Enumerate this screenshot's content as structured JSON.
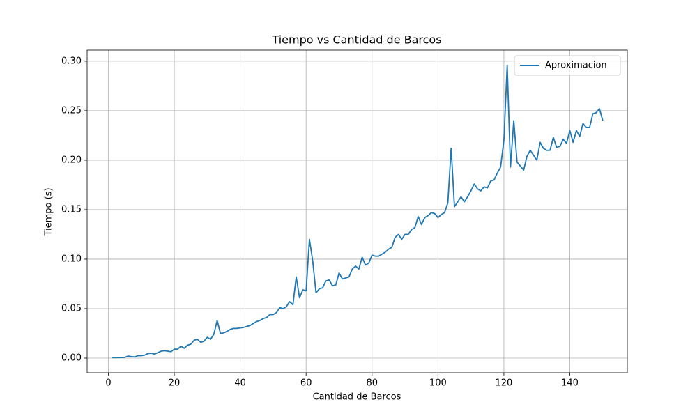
{
  "chart_data": {
    "type": "line",
    "title": "Tiempo vs Cantidad de Barcos",
    "xlabel": "Cantidad de Barcos",
    "ylabel": "Tiempo (s)",
    "x": [
      1,
      2,
      3,
      4,
      5,
      6,
      7,
      8,
      9,
      10,
      11,
      12,
      13,
      14,
      15,
      16,
      17,
      18,
      19,
      20,
      21,
      22,
      23,
      24,
      25,
      26,
      27,
      28,
      29,
      30,
      31,
      32,
      33,
      34,
      35,
      36,
      37,
      38,
      39,
      40,
      41,
      42,
      43,
      44,
      45,
      46,
      47,
      48,
      49,
      50,
      51,
      52,
      53,
      54,
      55,
      56,
      57,
      58,
      59,
      60,
      61,
      62,
      63,
      64,
      65,
      66,
      67,
      68,
      69,
      70,
      71,
      72,
      73,
      74,
      75,
      76,
      77,
      78,
      79,
      80,
      81,
      82,
      83,
      84,
      85,
      86,
      87,
      88,
      89,
      90,
      91,
      92,
      93,
      94,
      95,
      96,
      97,
      98,
      99,
      100,
      101,
      102,
      103,
      104,
      105,
      106,
      107,
      108,
      109,
      110,
      111,
      112,
      113,
      114,
      115,
      116,
      117,
      118,
      119,
      120,
      121,
      122,
      123,
      124,
      125,
      126,
      127,
      128,
      129,
      130,
      131,
      132,
      133,
      134,
      135,
      136,
      137,
      138,
      139,
      140,
      141,
      142,
      143,
      144,
      145,
      146,
      147,
      148,
      149,
      150
    ],
    "series": [
      {
        "name": "Aproximacion",
        "color": "#1f77b4",
        "values": [
          0.0005,
          0.0005,
          0.0005,
          0.0006,
          0.0008,
          0.002,
          0.0015,
          0.0012,
          0.0025,
          0.0025,
          0.003,
          0.0045,
          0.005,
          0.004,
          0.0055,
          0.007,
          0.0075,
          0.007,
          0.0065,
          0.009,
          0.009,
          0.012,
          0.01,
          0.013,
          0.014,
          0.018,
          0.019,
          0.016,
          0.017,
          0.021,
          0.019,
          0.024,
          0.038,
          0.025,
          0.0255,
          0.027,
          0.029,
          0.03,
          0.03,
          0.0305,
          0.031,
          0.032,
          0.033,
          0.035,
          0.037,
          0.038,
          0.04,
          0.041,
          0.044,
          0.044,
          0.046,
          0.051,
          0.05,
          0.052,
          0.057,
          0.054,
          0.082,
          0.061,
          0.069,
          0.068,
          0.12,
          0.098,
          0.066,
          0.07,
          0.071,
          0.078,
          0.079,
          0.073,
          0.074,
          0.086,
          0.08,
          0.081,
          0.082,
          0.09,
          0.093,
          0.09,
          0.102,
          0.094,
          0.096,
          0.104,
          0.103,
          0.103,
          0.105,
          0.107,
          0.11,
          0.112,
          0.122,
          0.125,
          0.12,
          0.125,
          0.125,
          0.13,
          0.132,
          0.143,
          0.135,
          0.142,
          0.144,
          0.147,
          0.146,
          0.142,
          0.145,
          0.147,
          0.157,
          0.212,
          0.153,
          0.158,
          0.163,
          0.158,
          0.163,
          0.169,
          0.176,
          0.171,
          0.169,
          0.173,
          0.172,
          0.179,
          0.18,
          0.187,
          0.193,
          0.22,
          0.296,
          0.193,
          0.24,
          0.198,
          0.194,
          0.19,
          0.204,
          0.21,
          0.205,
          0.2,
          0.218,
          0.212,
          0.21,
          0.21,
          0.223,
          0.213,
          0.214,
          0.221,
          0.217,
          0.23,
          0.218,
          0.23,
          0.224,
          0.237,
          0.233,
          0.233,
          0.247,
          0.248,
          0.252,
          0.24
        ]
      }
    ],
    "xlim": [
      -6.45,
      157.45
    ],
    "ylim": [
      -0.0148,
      0.3112
    ],
    "xticks": [
      0,
      20,
      40,
      60,
      80,
      100,
      120,
      140
    ],
    "yticks": [
      {
        "value": 0,
        "label": "0.00"
      },
      0.05,
      {
        "value": 0.1,
        "label": "0.10"
      },
      0.15,
      {
        "value": 0.2,
        "label": "0.20"
      },
      0.25,
      {
        "value": 0.3,
        "label": "0.30"
      }
    ],
    "grid": true,
    "legend": "upper right"
  }
}
